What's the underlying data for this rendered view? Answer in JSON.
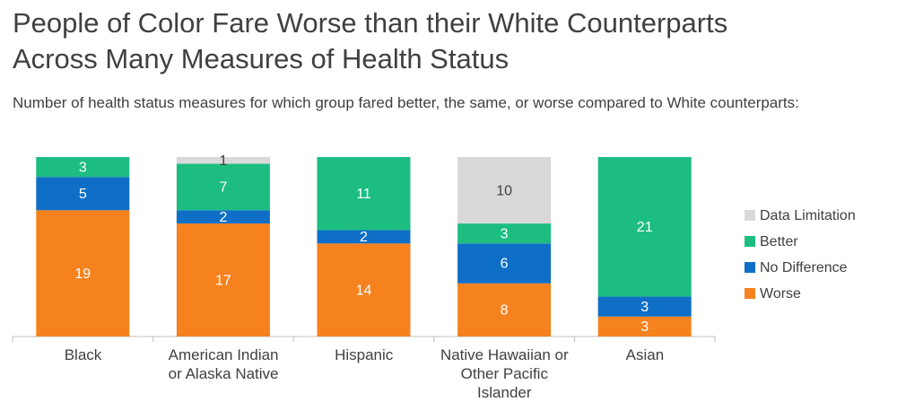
{
  "chart_data": {
    "type": "stacked_bar",
    "title": "People of Color Fare Worse than their White Counterparts\nAcross Many Measures of Health Status",
    "subtitle": "Number of health status measures for which group fared better, the same, or worse compared to White counterparts:",
    "categories": [
      "Black",
      "American Indian\nor Alaska Native",
      "Hispanic",
      "Native Hawaiian or\nOther Pacific Islander",
      "Asian"
    ],
    "series": [
      {
        "name": "Worse",
        "color": "#f5821f",
        "values": [
          19,
          17,
          14,
          8,
          3
        ]
      },
      {
        "name": "No Difference",
        "color": "#0f6fc6",
        "values": [
          5,
          2,
          2,
          6,
          3
        ]
      },
      {
        "name": "Better",
        "color": "#1dbd82",
        "values": [
          3,
          7,
          11,
          3,
          21
        ]
      },
      {
        "name": "Data Limitation",
        "color": "#d9d9d9",
        "values": [
          null,
          1,
          null,
          10,
          null
        ]
      }
    ],
    "legend": "right"
  }
}
